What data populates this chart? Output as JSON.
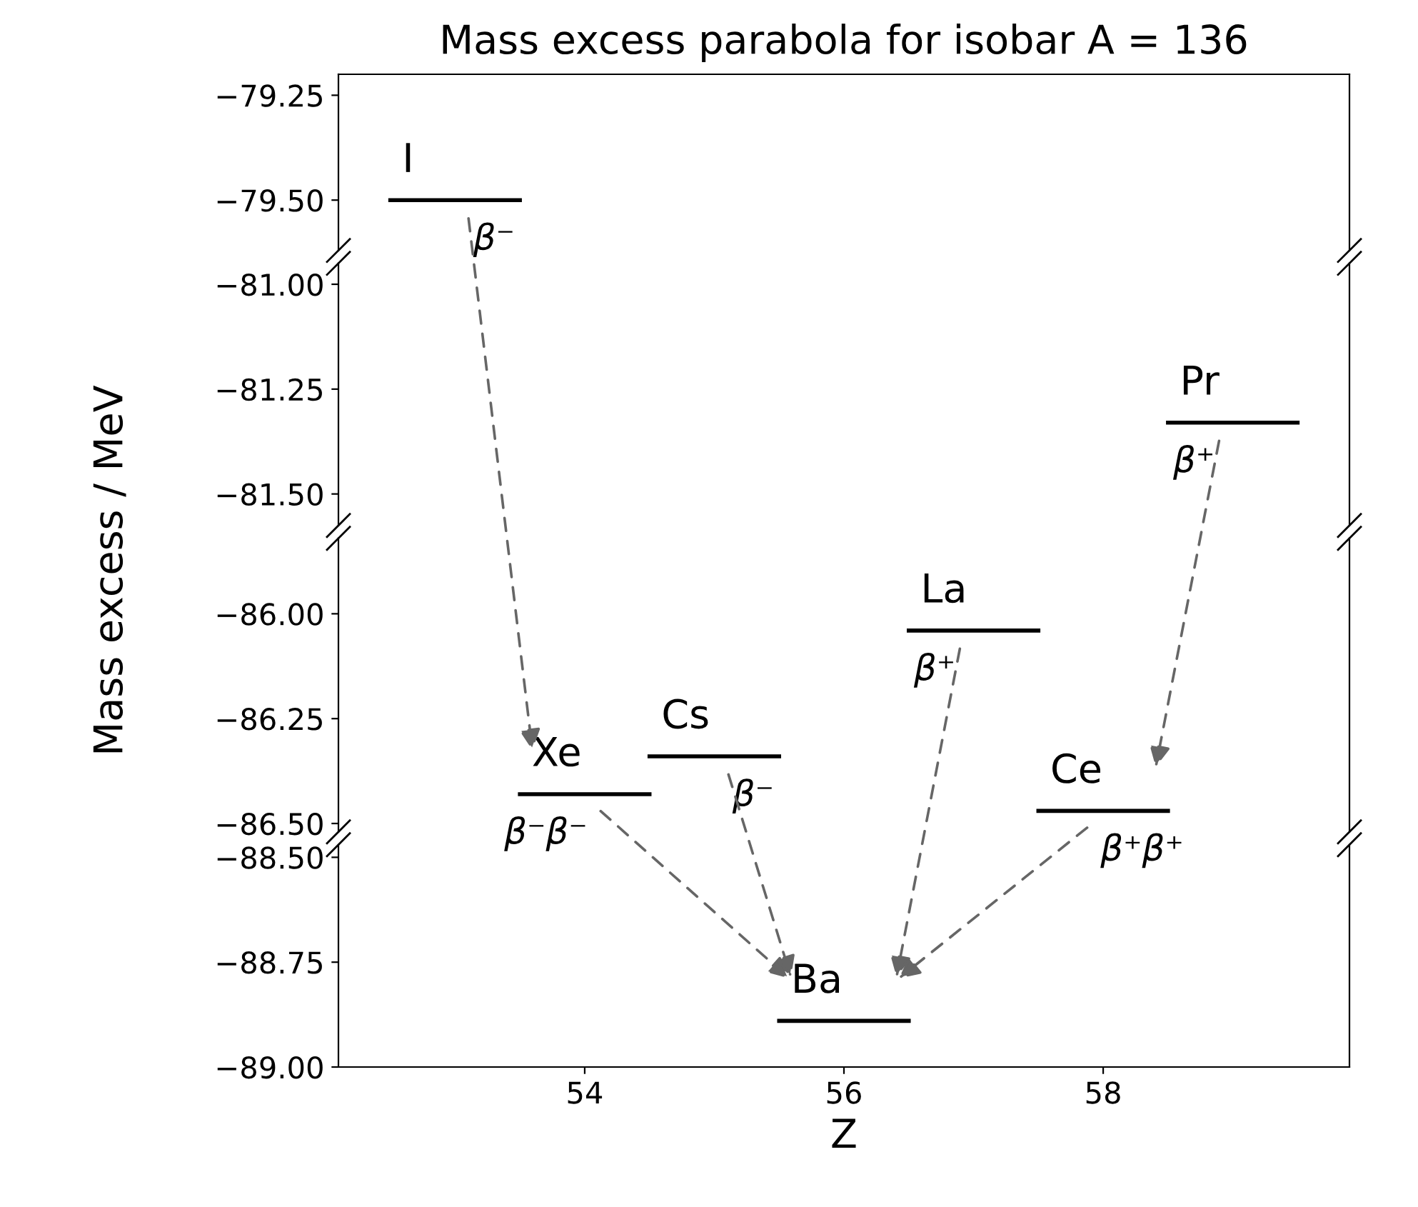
{
  "chart_data": [
    {
      "type": "line",
      "title": "Mass excess parabola for isobar A = 136",
      "ylabel": "Mass excess / MeV",
      "xlim": [
        52.1,
        59.9
      ],
      "ylim": [
        -79.62,
        -79.2
      ],
      "yticks": [
        {
          "value": -79.25,
          "label": "−79.25"
        },
        {
          "value": -79.5,
          "label": "−79.50"
        }
      ],
      "tick_labels": "y",
      "series": [
        {
          "name": "I",
          "color": "#000000",
          "x": [
            52.5,
            53.5
          ],
          "values": [
            -79.5,
            -79.5
          ]
        }
      ],
      "annotations": [
        "β⁻"
      ]
    },
    {
      "type": "line",
      "xlim": [
        52.1,
        59.9
      ],
      "ylim": [
        -81.575,
        -80.95
      ],
      "yticks": [
        {
          "value": -81.0,
          "label": "−81.00"
        },
        {
          "value": -81.25,
          "label": "−81.25"
        },
        {
          "value": -81.5,
          "label": "−81.50"
        }
      ],
      "tick_labels": "y",
      "series": [
        {
          "name": "Pr",
          "color": "#000000",
          "x": [
            58.5,
            59.5
          ],
          "values": [
            -81.33,
            -81.33
          ]
        }
      ],
      "annotations": [
        "β⁺"
      ]
    },
    {
      "type": "line",
      "xlim": [
        52.1,
        59.9
      ],
      "ylim": [
        -86.52,
        -85.82
      ],
      "yticks": [
        {
          "value": -86.0,
          "label": "−86.00"
        },
        {
          "value": -86.25,
          "label": "−86.25"
        },
        {
          "value": -86.5,
          "label": "−86.50"
        }
      ],
      "tick_labels": "y",
      "series": [
        {
          "name": "Xe",
          "color": "#000000",
          "x": [
            53.5,
            54.5
          ],
          "values": [
            -86.43,
            -86.43
          ]
        },
        {
          "name": "Cs",
          "color": "#000000",
          "x": [
            54.5,
            55.5
          ],
          "values": [
            -86.34,
            -86.34
          ]
        },
        {
          "name": "La",
          "color": "#000000",
          "x": [
            56.5,
            57.5
          ],
          "values": [
            -86.04,
            -86.04
          ]
        },
        {
          "name": "Ce",
          "color": "#000000",
          "x": [
            57.5,
            58.5
          ],
          "values": [
            -86.47,
            -86.47
          ]
        }
      ],
      "annotations": [
        "β⁻β⁻",
        "β⁻",
        "β⁺",
        "β⁺β⁺"
      ]
    },
    {
      "type": "line",
      "xlabel": "Z",
      "xlim": [
        52.1,
        59.9
      ],
      "ylim": [
        -89.0,
        -88.47
      ],
      "xticks": [
        54,
        56,
        58
      ],
      "yticks": [
        {
          "value": -88.5,
          "label": "−88.50"
        },
        {
          "value": -88.75,
          "label": "−88.75"
        },
        {
          "value": -89.0,
          "label": "−89.00"
        }
      ],
      "series": [
        {
          "name": "Ba",
          "color": "#000000",
          "x": [
            55.5,
            56.5
          ],
          "values": [
            -88.89,
            -88.89
          ]
        }
      ]
    }
  ]
}
